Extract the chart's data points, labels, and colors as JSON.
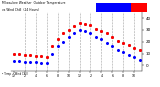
{
  "title_left": "Milwaukee Weather  Outdoor Temperature",
  "title_right": "vs Wind Chill  (24 Hours)",
  "bg_color": "#ffffff",
  "plot_bg": "#ffffff",
  "grid_color": "#888888",
  "x_hours": [
    0,
    1,
    2,
    3,
    4,
    5,
    6,
    7,
    8,
    9,
    10,
    11,
    12,
    13,
    14,
    15,
    16,
    17,
    18,
    19,
    20,
    21,
    22,
    23
  ],
  "temp_values": [
    10,
    10,
    9,
    9,
    8,
    8,
    7,
    16,
    22,
    27,
    30,
    33,
    36,
    35,
    34,
    31,
    29,
    27,
    24,
    21,
    19,
    17,
    15,
    13
  ],
  "windchill_values": [
    4,
    4,
    3,
    3,
    3,
    2,
    2,
    10,
    16,
    20,
    24,
    27,
    30,
    29,
    27,
    24,
    22,
    19,
    16,
    13,
    11,
    9,
    7,
    5
  ],
  "heat_index_values": [
    10,
    10,
    9,
    9,
    8,
    8,
    7,
    16,
    22,
    27,
    30,
    33,
    36,
    35,
    34,
    31,
    29,
    27,
    24,
    21,
    19,
    17,
    15,
    13
  ],
  "ylim": [
    -5,
    45
  ],
  "yticks": [
    0,
    10,
    20,
    30,
    40
  ],
  "temp_color": "#ff0000",
  "windchill_color": "#0000ff",
  "heat_color": "#000000",
  "legend_bar_blue": "#0000ff",
  "legend_bar_red": "#ff0000",
  "x_tick_hours": [
    0,
    2,
    4,
    6,
    8,
    10,
    12,
    14,
    16,
    18,
    20,
    22
  ],
  "x_tick_labels": [
    "12",
    "2",
    "4",
    "6",
    "8",
    "10",
    "12",
    "2",
    "4",
    "6",
    "8",
    "10"
  ],
  "grid_ticks": [
    2,
    4,
    6,
    8,
    10,
    12,
    14,
    16,
    18,
    20,
    22
  ]
}
